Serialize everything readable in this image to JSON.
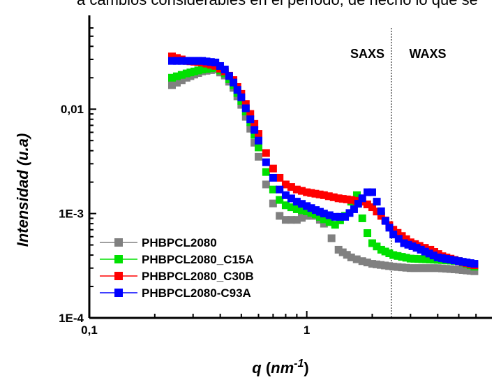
{
  "header_text": "a cambios considerables en el período, de hecho lo que se",
  "chart_data": {
    "type": "scatter",
    "x_scale": "log",
    "y_scale": "log",
    "xlim": [
      0.1,
      6.5
    ],
    "ylim": [
      0.0001,
      0.06
    ],
    "xlabel": "q",
    "xlabel_unit": "nm",
    "xlabel_exp": "-1",
    "ylabel": "Intensidad (u.a)",
    "x_ticks": [
      {
        "v": 0.1,
        "label": "0,1"
      },
      {
        "v": 1,
        "label": "1"
      }
    ],
    "y_ticks": [
      {
        "v": 0.0001,
        "label": "1E-4"
      },
      {
        "v": 0.001,
        "label": "1E-3"
      },
      {
        "v": 0.01,
        "label": "0,01"
      }
    ],
    "grid": false,
    "legend_position": "bottom-left",
    "annotations": [
      {
        "text": "SAXS",
        "x": 1.9
      },
      {
        "text": "WAXS",
        "x": 3.6
      }
    ],
    "divider_x": 2.45,
    "series": [
      {
        "name": "PHBPCL2080",
        "color": "#808080",
        "x": [
          0.24,
          0.28,
          0.33,
          0.38,
          0.42,
          0.46,
          0.5,
          0.55,
          0.6,
          0.65,
          0.7,
          0.75,
          0.8,
          0.9,
          1.0,
          1.1,
          1.2,
          1.3,
          1.4,
          1.6,
          1.8,
          2.0,
          2.5,
          3.0,
          4.0,
          5.0,
          5.9
        ],
        "y": [
          0.017,
          0.02,
          0.023,
          0.024,
          0.021,
          0.016,
          0.011,
          0.0065,
          0.0035,
          0.0019,
          0.00125,
          0.00095,
          0.00087,
          0.00087,
          0.00095,
          0.00095,
          0.0008,
          0.00058,
          0.00045,
          0.00038,
          0.00035,
          0.00033,
          0.00031,
          0.0003,
          0.0003,
          0.00029,
          0.00028
        ]
      },
      {
        "name": "PHBPCL2080_C15A",
        "color": "#00e000",
        "x": [
          0.24,
          0.28,
          0.33,
          0.38,
          0.42,
          0.46,
          0.5,
          0.55,
          0.6,
          0.65,
          0.7,
          0.75,
          0.8,
          0.9,
          1.0,
          1.1,
          1.2,
          1.35,
          1.5,
          1.6,
          1.7,
          1.75,
          1.8,
          1.9,
          2.0,
          2.2,
          2.5,
          3.0,
          4.0,
          5.0,
          5.9
        ],
        "y": [
          0.02,
          0.022,
          0.024,
          0.025,
          0.022,
          0.017,
          0.012,
          0.0075,
          0.0043,
          0.0025,
          0.0017,
          0.00135,
          0.0012,
          0.0011,
          0.00105,
          0.00098,
          0.00088,
          0.00078,
          0.00095,
          0.0013,
          0.0015,
          0.0013,
          0.0009,
          0.00065,
          0.00052,
          0.00045,
          0.0004,
          0.00037,
          0.00036,
          0.00035,
          0.00031
        ]
      },
      {
        "name": "PHBPCL2080_C30B",
        "color": "#ff0000",
        "x": [
          0.24,
          0.28,
          0.33,
          0.38,
          0.42,
          0.46,
          0.5,
          0.55,
          0.6,
          0.65,
          0.7,
          0.75,
          0.8,
          0.9,
          1.0,
          1.2,
          1.4,
          1.6,
          1.8,
          2.0,
          2.2,
          2.5,
          3.0,
          3.3,
          3.7,
          4.2,
          5.0,
          5.9
        ],
        "y": [
          0.032,
          0.029,
          0.028,
          0.026,
          0.023,
          0.019,
          0.014,
          0.009,
          0.0058,
          0.0038,
          0.0027,
          0.0022,
          0.0019,
          0.0017,
          0.0016,
          0.0015,
          0.0014,
          0.00135,
          0.0013,
          0.00115,
          0.00095,
          0.0007,
          0.00053,
          0.00049,
          0.00045,
          0.00039,
          0.00035,
          0.00032
        ]
      },
      {
        "name": "PHBPCL2080-C93A",
        "color": "#0000ff",
        "x": [
          0.24,
          0.28,
          0.33,
          0.38,
          0.42,
          0.46,
          0.5,
          0.55,
          0.6,
          0.65,
          0.7,
          0.75,
          0.8,
          0.9,
          1.0,
          1.1,
          1.2,
          1.35,
          1.5,
          1.65,
          1.8,
          1.9,
          2.0,
          2.1,
          2.3,
          2.5,
          2.8,
          3.2,
          4.0,
          5.0,
          5.9
        ],
        "y": [
          0.029,
          0.029,
          0.029,
          0.028,
          0.024,
          0.018,
          0.013,
          0.008,
          0.005,
          0.0031,
          0.0022,
          0.0017,
          0.0015,
          0.0013,
          0.00118,
          0.00108,
          0.001,
          0.00093,
          0.00093,
          0.0011,
          0.0014,
          0.0016,
          0.0016,
          0.0013,
          0.00085,
          0.00063,
          0.00052,
          0.00047,
          0.00038,
          0.00035,
          0.00033
        ]
      }
    ]
  }
}
